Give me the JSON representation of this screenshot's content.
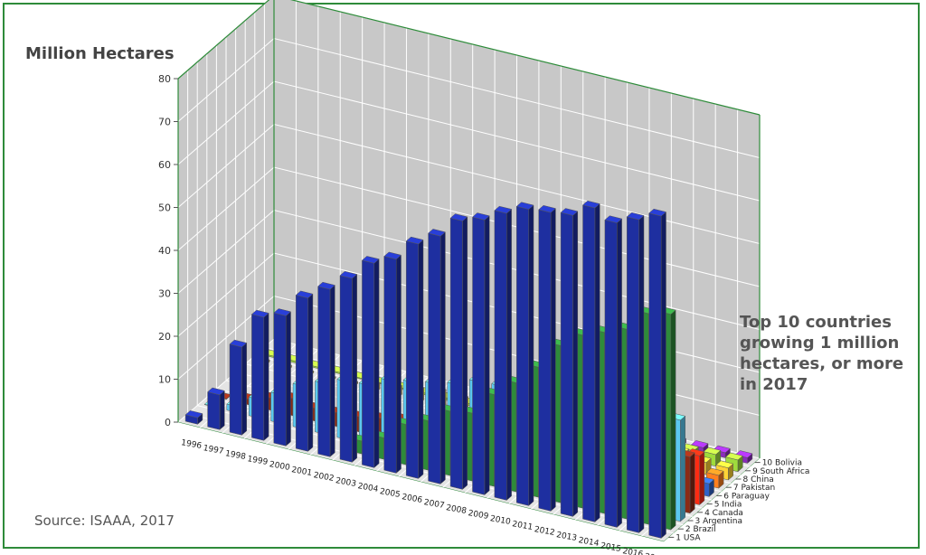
{
  "ylabel": "Million Hectares",
  "note": "Top 10 countries growing 1 million hectares, or more in 2017",
  "source": "Source: ISAAA, 2017",
  "colors": {
    "frame": "#2e8b3a",
    "wall": "#c8c8c8",
    "floor": "#e4e4e4",
    "grid": "#ffffff"
  },
  "chart_data": {
    "type": "bar",
    "title": "",
    "ylabel": "Million Hectares",
    "ylim": [
      0,
      80
    ],
    "yticks": [
      0,
      10,
      20,
      30,
      40,
      50,
      60,
      70,
      80
    ],
    "categories": [
      "1996",
      "1997",
      "1998",
      "1999",
      "2000",
      "2001",
      "2002",
      "2003",
      "2004",
      "2005",
      "2006",
      "2007",
      "2008",
      "2009",
      "2010",
      "2011",
      "2012",
      "2013",
      "2014",
      "2015",
      "2016",
      "2017"
    ],
    "series": [
      {
        "name": "1 USA",
        "color": "#1e2fa0",
        "values": [
          1.5,
          8.1,
          20.5,
          28.7,
          30.3,
          35.7,
          39.0,
          42.8,
          47.6,
          49.8,
          54.6,
          57.7,
          62.5,
          64.0,
          66.8,
          69.0,
          69.5,
          70.1,
          73.1,
          70.9,
          72.9,
          75.0
        ]
      },
      {
        "name": "2 Brazil",
        "color": "#2e8b3a",
        "values": [
          0,
          0,
          0,
          0,
          0,
          0,
          0,
          3.0,
          5.0,
          9.4,
          11.5,
          15.0,
          15.8,
          21.4,
          25.4,
          30.3,
          36.6,
          40.3,
          42.2,
          44.2,
          49.1,
          50.2
        ]
      },
      {
        "name": "3 Argentina",
        "color": "#5bc8f0",
        "values": [
          0.1,
          1.4,
          4.3,
          6.7,
          10.0,
          11.8,
          13.5,
          13.9,
          16.2,
          17.1,
          18.0,
          19.1,
          21.0,
          21.3,
          22.9,
          23.7,
          23.9,
          24.4,
          24.3,
          24.5,
          23.8,
          23.6
        ]
      },
      {
        "name": "4 Canada",
        "color": "#8b2a15",
        "values": [
          0.1,
          1.3,
          2.8,
          4.0,
          3.0,
          3.2,
          3.5,
          4.4,
          5.4,
          5.8,
          6.1,
          7.0,
          7.6,
          8.2,
          8.8,
          10.4,
          11.6,
          10.8,
          11.6,
          11.0,
          11.6,
          13.1
        ]
      },
      {
        "name": "5 India",
        "color": "#ff2b12",
        "values": [
          0,
          0,
          0,
          0,
          0,
          0,
          0.1,
          0.1,
          0.5,
          1.3,
          3.8,
          6.2,
          7.6,
          8.4,
          9.4,
          10.6,
          10.8,
          11.0,
          11.6,
          11.6,
          10.8,
          11.4
        ]
      },
      {
        "name": "6 Paraguay",
        "color": "#2f62c8",
        "values": [
          0,
          0,
          0,
          0,
          0,
          0,
          0,
          0,
          1.2,
          1.8,
          2.0,
          2.6,
          2.7,
          2.2,
          2.6,
          2.8,
          3.4,
          3.6,
          3.9,
          3.6,
          3.6,
          3.0
        ]
      },
      {
        "name": "7 Pakistan",
        "color": "#ff7f1e",
        "values": [
          0,
          0,
          0,
          0,
          0,
          0,
          0,
          0,
          0,
          0,
          0,
          0,
          0,
          0,
          2.4,
          2.6,
          2.8,
          2.8,
          2.9,
          2.9,
          2.9,
          3.0
        ]
      },
      {
        "name": "8 China",
        "color": "#ffd335",
        "values": [
          0.5,
          0.5,
          0.4,
          0.3,
          0.5,
          1.5,
          2.1,
          2.8,
          3.7,
          3.3,
          3.5,
          3.8,
          3.8,
          3.7,
          3.5,
          3.9,
          4.0,
          4.2,
          3.9,
          3.7,
          2.8,
          2.8
        ]
      },
      {
        "name": "9 South Africa",
        "color": "#9fdc3c",
        "values": [
          0.3,
          0.4,
          0.3,
          0.3,
          0.2,
          0.2,
          0.3,
          0.4,
          0.5,
          0.5,
          1.4,
          1.8,
          1.8,
          2.1,
          2.2,
          2.3,
          2.9,
          2.9,
          2.7,
          2.3,
          2.7,
          2.7
        ]
      },
      {
        "name": "10 Bolivia",
        "color": "#8b2bbd",
        "values": [
          0,
          0,
          0,
          0,
          0,
          0,
          0,
          0,
          0,
          0,
          0,
          0,
          0.5,
          0.8,
          0.9,
          0.9,
          1.0,
          1.0,
          1.0,
          1.1,
          1.2,
          1.3
        ]
      }
    ]
  }
}
